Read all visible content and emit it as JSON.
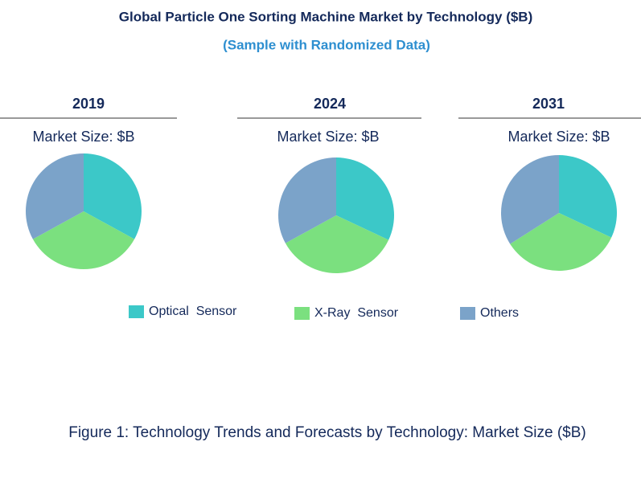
{
  "title": "Global Particle One Sorting Machine Market by Technology ($B)",
  "subtitle": "(Sample with Randomized Data)",
  "caption": "Figure 1: Technology Trends and Forecasts by Technology: Market Size ($B)",
  "chart_data": [
    {
      "type": "pie",
      "title": "2019",
      "subtitle": "Market Size: $B",
      "categories": [
        "Optical  Sensor",
        "X-Ray  Sensor",
        "Others"
      ],
      "values": [
        33,
        34,
        33
      ],
      "colors": [
        "#3cc8c8",
        "#7be07f",
        "#7ba3c9"
      ]
    },
    {
      "type": "pie",
      "title": "2024",
      "subtitle": "Market Size: $B",
      "categories": [
        "Optical  Sensor",
        "X-Ray  Sensor",
        "Others"
      ],
      "values": [
        32,
        35,
        33
      ],
      "colors": [
        "#3cc8c8",
        "#7be07f",
        "#7ba3c9"
      ]
    },
    {
      "type": "pie",
      "title": "2031",
      "subtitle": "Market Size: $B",
      "categories": [
        "Optical  Sensor",
        "X-Ray  Sensor",
        "Others"
      ],
      "values": [
        32,
        34,
        34
      ],
      "colors": [
        "#3cc8c8",
        "#7be07f",
        "#7ba3c9"
      ]
    }
  ]
}
